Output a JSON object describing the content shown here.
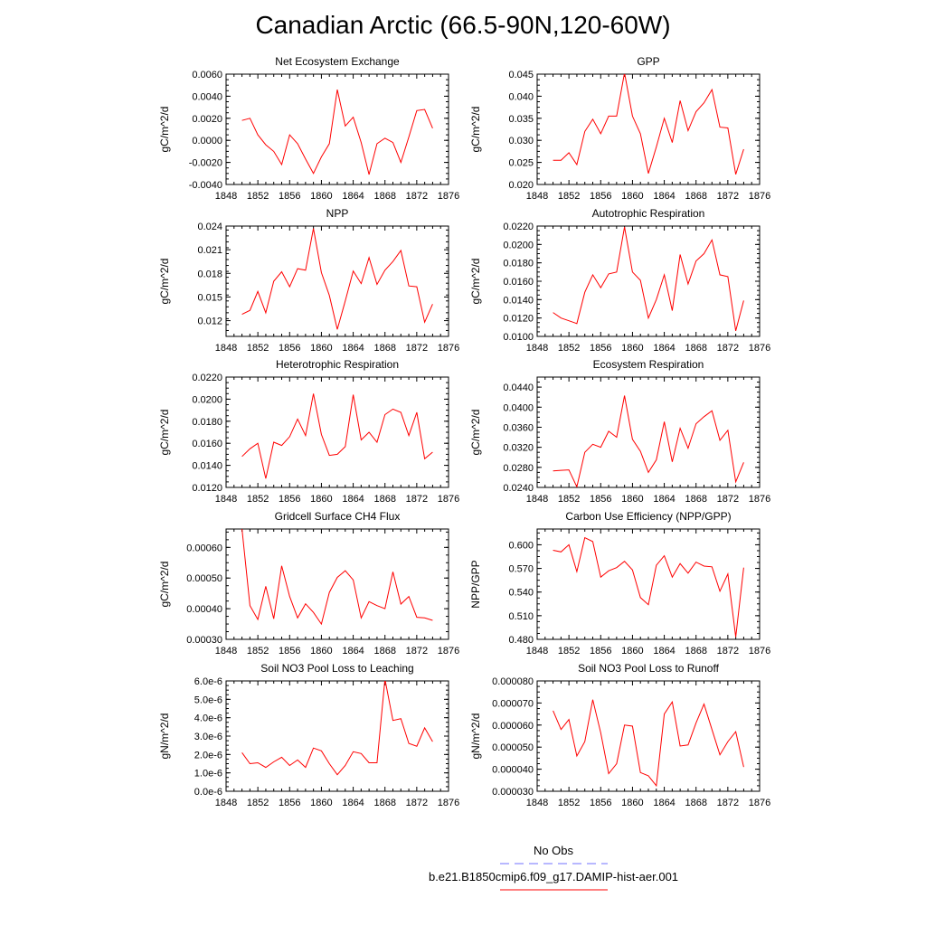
{
  "title": "Canadian Arctic (66.5-90N,120-60W)",
  "colors": {
    "model": "#ff0000",
    "obs": "#7070ff",
    "axis": "#000000"
  },
  "legend": {
    "entries": [
      {
        "label": "No Obs",
        "color": "#7070ff",
        "style": "dashed"
      },
      {
        "label": "b.e21.B1850cmip6.f09_g17.DAMIP-hist-aer.001",
        "color": "#ff0000",
        "style": "solid"
      }
    ]
  },
  "chart_data": [
    {
      "type": "line",
      "title": "Net Ecosystem Exchange",
      "ylabel": "gC/m^2/d",
      "xlim": [
        1848,
        1876
      ],
      "xticks": [
        "1848",
        "1852",
        "1856",
        "1860",
        "1864",
        "1868",
        "1872",
        "1876"
      ],
      "ylim": [
        -0.004,
        0.006
      ],
      "yticks": [
        "-0.0040",
        "-0.0020",
        "0.0000",
        "0.0020",
        "0.0040",
        "0.0060"
      ],
      "x": [
        1850,
        1851,
        1852,
        1853,
        1854,
        1855,
        1856,
        1857,
        1858,
        1859,
        1860,
        1861,
        1862,
        1863,
        1864,
        1865,
        1866,
        1867,
        1868,
        1869,
        1870,
        1871,
        1872,
        1873,
        1874
      ],
      "series": [
        {
          "values": [
            0.0018,
            0.002,
            0.0005,
            -0.0004,
            -0.001,
            -0.0022,
            0.0005,
            -0.0003,
            -0.0017,
            -0.003,
            -0.0015,
            -0.0003,
            0.0046,
            0.0013,
            0.0021,
            -0.0002,
            -0.0031,
            -0.0003,
            0.0002,
            -0.0002,
            -0.002,
            0.0003,
            0.0027,
            0.0028,
            0.0011
          ]
        }
      ]
    },
    {
      "type": "line",
      "title": "GPP",
      "ylabel": "gC/m^2/d",
      "xlim": [
        1848,
        1876
      ],
      "xticks": [
        "1848",
        "1852",
        "1856",
        "1860",
        "1864",
        "1868",
        "1872",
        "1876"
      ],
      "ylim": [
        0.02,
        0.045
      ],
      "yticks": [
        "0.020",
        "0.025",
        "0.030",
        "0.035",
        "0.040",
        "0.045"
      ],
      "x": [
        1850,
        1851,
        1852,
        1853,
        1854,
        1855,
        1856,
        1857,
        1858,
        1859,
        1860,
        1861,
        1862,
        1863,
        1864,
        1865,
        1866,
        1867,
        1868,
        1869,
        1870,
        1871,
        1872,
        1873,
        1874
      ],
      "series": [
        {
          "values": [
            0.0255,
            0.0255,
            0.0272,
            0.0245,
            0.032,
            0.0348,
            0.0315,
            0.0355,
            0.0355,
            0.0453,
            0.0355,
            0.0315,
            0.0225,
            0.0285,
            0.035,
            0.0295,
            0.039,
            0.0322,
            0.0365,
            0.0385,
            0.0415,
            0.033,
            0.0328,
            0.0223,
            0.028
          ]
        }
      ]
    },
    {
      "type": "line",
      "title": "NPP",
      "ylabel": "gC/m^2/d",
      "xlim": [
        1848,
        1876
      ],
      "xticks": [
        "1848",
        "1852",
        "1856",
        "1860",
        "1864",
        "1868",
        "1872",
        "1876"
      ],
      "ylim": [
        0.01,
        0.024
      ],
      "yticks": [
        "0.012",
        "0.015",
        "0.018",
        "0.021",
        "0.024"
      ],
      "x": [
        1850,
        1851,
        1852,
        1853,
        1854,
        1855,
        1856,
        1857,
        1858,
        1859,
        1860,
        1861,
        1862,
        1863,
        1864,
        1865,
        1866,
        1867,
        1868,
        1869,
        1870,
        1871,
        1872,
        1873,
        1874
      ],
      "series": [
        {
          "values": [
            0.0128,
            0.0133,
            0.0157,
            0.013,
            0.017,
            0.0182,
            0.0163,
            0.0186,
            0.0184,
            0.0237,
            0.0181,
            0.0152,
            0.0109,
            0.0145,
            0.0183,
            0.0167,
            0.02,
            0.0166,
            0.0184,
            0.0195,
            0.0209,
            0.0164,
            0.0163,
            0.0118,
            0.0141
          ]
        }
      ]
    },
    {
      "type": "line",
      "title": "Autotrophic Respiration",
      "ylabel": "gC/m^2/d",
      "xlim": [
        1848,
        1876
      ],
      "xticks": [
        "1848",
        "1852",
        "1856",
        "1860",
        "1864",
        "1868",
        "1872",
        "1876"
      ],
      "ylim": [
        0.01,
        0.022
      ],
      "yticks": [
        "0.0100",
        "0.0120",
        "0.0140",
        "0.0160",
        "0.0180",
        "0.0200",
        "0.0220"
      ],
      "x": [
        1850,
        1851,
        1852,
        1853,
        1854,
        1855,
        1856,
        1857,
        1858,
        1859,
        1860,
        1861,
        1862,
        1863,
        1864,
        1865,
        1866,
        1867,
        1868,
        1869,
        1870,
        1871,
        1872,
        1873,
        1874
      ],
      "series": [
        {
          "values": [
            0.0126,
            0.012,
            0.0117,
            0.0114,
            0.0148,
            0.0167,
            0.0153,
            0.0168,
            0.017,
            0.0219,
            0.017,
            0.0161,
            0.012,
            0.014,
            0.0167,
            0.0128,
            0.0189,
            0.0157,
            0.0182,
            0.019,
            0.0205,
            0.0167,
            0.0165,
            0.0106,
            0.0139
          ]
        }
      ]
    },
    {
      "type": "line",
      "title": "Heterotrophic Respiration",
      "ylabel": "gC/m^2/d",
      "xlim": [
        1848,
        1876
      ],
      "xticks": [
        "1848",
        "1852",
        "1856",
        "1860",
        "1864",
        "1868",
        "1872",
        "1876"
      ],
      "ylim": [
        0.012,
        0.022
      ],
      "yticks": [
        "0.0120",
        "0.0140",
        "0.0160",
        "0.0180",
        "0.0200",
        "0.0220"
      ],
      "x": [
        1850,
        1851,
        1852,
        1853,
        1854,
        1855,
        1856,
        1857,
        1858,
        1859,
        1860,
        1861,
        1862,
        1863,
        1864,
        1865,
        1866,
        1867,
        1868,
        1869,
        1870,
        1871,
        1872,
        1873,
        1874
      ],
      "series": [
        {
          "values": [
            0.0148,
            0.0155,
            0.016,
            0.0128,
            0.0161,
            0.0158,
            0.0166,
            0.0182,
            0.0167,
            0.0205,
            0.0168,
            0.0149,
            0.015,
            0.0157,
            0.0204,
            0.0163,
            0.017,
            0.0161,
            0.0186,
            0.0191,
            0.0188,
            0.0167,
            0.0188,
            0.0146,
            0.0152
          ]
        }
      ]
    },
    {
      "type": "line",
      "title": "Ecosystem Respiration",
      "ylabel": "gC/m^2/d",
      "xlim": [
        1848,
        1876
      ],
      "xticks": [
        "1848",
        "1852",
        "1856",
        "1860",
        "1864",
        "1868",
        "1872",
        "1876"
      ],
      "ylim": [
        0.024,
        0.046
      ],
      "yticks": [
        "0.0240",
        "0.0280",
        "0.0320",
        "0.0360",
        "0.0400",
        "0.0440"
      ],
      "x": [
        1850,
        1851,
        1852,
        1853,
        1854,
        1855,
        1856,
        1857,
        1858,
        1859,
        1860,
        1861,
        1862,
        1863,
        1864,
        1865,
        1866,
        1867,
        1868,
        1869,
        1870,
        1871,
        1872,
        1873,
        1874
      ],
      "series": [
        {
          "values": [
            0.0273,
            0.0274,
            0.0275,
            0.0241,
            0.031,
            0.0326,
            0.032,
            0.0352,
            0.034,
            0.0423,
            0.0336,
            0.0312,
            0.027,
            0.0295,
            0.0371,
            0.0291,
            0.0358,
            0.0318,
            0.0367,
            0.0381,
            0.0393,
            0.0334,
            0.0354,
            0.0251,
            0.029
          ]
        }
      ]
    },
    {
      "type": "line",
      "title": "Gridcell Surface CH4 Flux",
      "ylabel": "gC/m^2/d",
      "xlim": [
        1848,
        1876
      ],
      "xticks": [
        "1848",
        "1852",
        "1856",
        "1860",
        "1864",
        "1868",
        "1872",
        "1876"
      ],
      "ylim": [
        0.0003,
        0.00066
      ],
      "yticks": [
        "0.00030",
        "0.00040",
        "0.00050",
        "0.00060"
      ],
      "x": [
        1850,
        1851,
        1852,
        1853,
        1854,
        1855,
        1856,
        1857,
        1858,
        1859,
        1860,
        1861,
        1862,
        1863,
        1864,
        1865,
        1866,
        1867,
        1868,
        1869,
        1870,
        1871,
        1872,
        1873,
        1874
      ],
      "series": [
        {
          "values": [
            0.00066,
            0.00041,
            0.000365,
            0.000473,
            0.000367,
            0.00054,
            0.00044,
            0.00037,
            0.000416,
            0.000388,
            0.00035,
            0.000453,
            0.000502,
            0.000524,
            0.000494,
            0.00037,
            0.000423,
            0.00041,
            0.0004,
            0.00052,
            0.000415,
            0.00044,
            0.000372,
            0.00037,
            0.000362
          ]
        }
      ]
    },
    {
      "type": "line",
      "title": "Carbon Use Efficiency (NPP/GPP)",
      "ylabel": "NPP/GPP",
      "xlim": [
        1848,
        1876
      ],
      "xticks": [
        "1848",
        "1852",
        "1856",
        "1860",
        "1864",
        "1868",
        "1872",
        "1876"
      ],
      "ylim": [
        0.48,
        0.62
      ],
      "yticks": [
        "0.480",
        "0.510",
        "0.540",
        "0.570",
        "0.600"
      ],
      "x": [
        1850,
        1851,
        1852,
        1853,
        1854,
        1855,
        1856,
        1857,
        1858,
        1859,
        1860,
        1861,
        1862,
        1863,
        1864,
        1865,
        1866,
        1867,
        1868,
        1869,
        1870,
        1871,
        1872,
        1873,
        1874
      ],
      "series": [
        {
          "values": [
            0.593,
            0.591,
            0.6,
            0.566,
            0.609,
            0.604,
            0.559,
            0.567,
            0.571,
            0.579,
            0.568,
            0.533,
            0.524,
            0.574,
            0.586,
            0.559,
            0.576,
            0.564,
            0.578,
            0.573,
            0.572,
            0.541,
            0.563,
            0.483,
            0.571
          ]
        }
      ]
    },
    {
      "type": "line",
      "title": "Soil NO3 Pool Loss to Leaching",
      "ylabel": "gN/m^2/d",
      "xlim": [
        1848,
        1876
      ],
      "xticks": [
        "1848",
        "1852",
        "1856",
        "1860",
        "1864",
        "1868",
        "1872",
        "1876"
      ],
      "ylim": [
        0,
        6e-06
      ],
      "yticks": [
        "0.0e-6",
        "1.0e-6",
        "2.0e-6",
        "3.0e-6",
        "4.0e-6",
        "5.0e-6",
        "6.0e-6"
      ],
      "x": [
        1850,
        1851,
        1852,
        1853,
        1854,
        1855,
        1856,
        1857,
        1858,
        1859,
        1860,
        1861,
        1862,
        1863,
        1864,
        1865,
        1866,
        1867,
        1868,
        1869,
        1870,
        1871,
        1872,
        1873,
        1874
      ],
      "series": [
        {
          "values": [
            2.1e-06,
            1.5e-06,
            1.55e-06,
            1.3e-06,
            1.6e-06,
            1.85e-06,
            1.4e-06,
            1.7e-06,
            1.3e-06,
            2.35e-06,
            2.2e-06,
            1.5e-06,
            9e-07,
            1.4e-06,
            2.15e-06,
            2.05e-06,
            1.55e-06,
            1.55e-06,
            6.1e-06,
            3.85e-06,
            3.95e-06,
            2.6e-06,
            2.45e-06,
            3.45e-06,
            2.7e-06
          ]
        }
      ]
    },
    {
      "type": "line",
      "title": "Soil NO3 Pool Loss to Runoff",
      "ylabel": "gN/m^2/d",
      "xlim": [
        1848,
        1876
      ],
      "xticks": [
        "1848",
        "1852",
        "1856",
        "1860",
        "1864",
        "1868",
        "1872",
        "1876"
      ],
      "ylim": [
        3e-05,
        8e-05
      ],
      "yticks": [
        "0.000030",
        "0.000040",
        "0.000050",
        "0.000060",
        "0.000070",
        "0.000080"
      ],
      "x": [
        1850,
        1851,
        1852,
        1853,
        1854,
        1855,
        1856,
        1857,
        1858,
        1859,
        1860,
        1861,
        1862,
        1863,
        1864,
        1865,
        1866,
        1867,
        1868,
        1869,
        1870,
        1871,
        1872,
        1873,
        1874
      ],
      "series": [
        {
          "values": [
            6.65e-05,
            5.8e-05,
            6.25e-05,
            4.6e-05,
            5.25e-05,
            7.15e-05,
            5.65e-05,
            3.8e-05,
            4.25e-05,
            6e-05,
            5.95e-05,
            3.85e-05,
            3.7e-05,
            3.25e-05,
            6.5e-05,
            7.05e-05,
            5.05e-05,
            5.1e-05,
            6.1e-05,
            6.95e-05,
            5.8e-05,
            4.65e-05,
            5.25e-05,
            5.7e-05,
            4.1e-05
          ]
        }
      ]
    }
  ]
}
